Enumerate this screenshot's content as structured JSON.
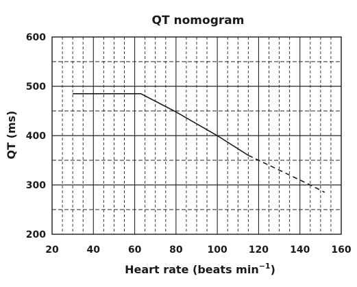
{
  "chart_data": {
    "type": "line",
    "title": "QT nomogram",
    "xlabel": "Heart rate (beats min",
    "xlabel_sup": "−1",
    "xlabel_close": ")",
    "ylabel": "QT (ms)",
    "xlim": [
      20,
      160
    ],
    "ylim": [
      200,
      600
    ],
    "x_ticks": [
      "20",
      "40",
      "60",
      "80",
      "100",
      "120",
      "140",
      "160"
    ],
    "y_ticks": [
      "200",
      "300",
      "400",
      "500",
      "600"
    ],
    "grid": true,
    "series": [
      {
        "style": "solid",
        "points": [
          [
            30,
            485
          ],
          [
            63,
            485
          ],
          [
            80,
            448
          ],
          [
            100,
            400
          ],
          [
            115,
            360
          ]
        ]
      },
      {
        "style": "dashed",
        "points": [
          [
            115,
            360
          ],
          [
            130,
            330
          ],
          [
            145,
            300
          ],
          [
            152,
            285
          ]
        ]
      }
    ]
  },
  "colors": {
    "line": "#1a1a1a",
    "grid": "#222222",
    "text": "#1a1a1a"
  }
}
